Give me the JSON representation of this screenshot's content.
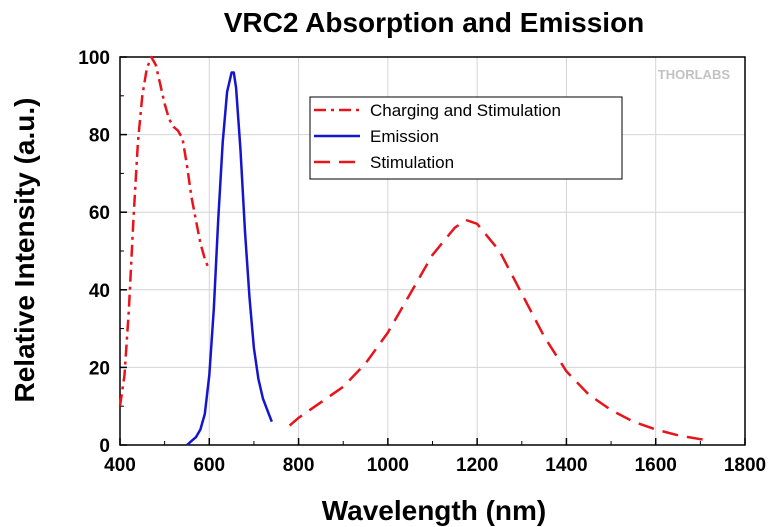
{
  "chart_data": {
    "type": "line",
    "title": "VRC2 Absorption and Emission",
    "xlabel": "Wavelength (nm)",
    "ylabel": "Relative Intensity (a.u.)",
    "xlim": [
      400,
      1800
    ],
    "ylim": [
      0,
      100
    ],
    "xticks": [
      400,
      600,
      800,
      1000,
      1200,
      1400,
      1600,
      1800
    ],
    "yticks": [
      0,
      20,
      40,
      60,
      80,
      100
    ],
    "grid": true,
    "legend_position": "upper-center",
    "watermark": "THORLABS",
    "series": [
      {
        "name": "Charging and Stimulation",
        "color": "#e8141b",
        "dash": "dash-dot",
        "x": [
          400,
          410,
          420,
          430,
          440,
          450,
          460,
          470,
          480,
          490,
          500,
          510,
          520,
          530,
          540,
          550,
          560,
          570,
          580,
          590,
          600
        ],
        "y": [
          10,
          18,
          35,
          58,
          78,
          90,
          97,
          100,
          98,
          93,
          88,
          84,
          82,
          81,
          79,
          72,
          64,
          58,
          52,
          48,
          45
        ]
      },
      {
        "name": "Emission",
        "color": "#1515d0",
        "dash": "solid",
        "x": [
          550,
          560,
          570,
          580,
          590,
          600,
          610,
          620,
          630,
          640,
          650,
          655,
          660,
          670,
          680,
          690,
          700,
          710,
          720,
          730,
          740
        ],
        "y": [
          0,
          1,
          2,
          4,
          8,
          18,
          35,
          58,
          78,
          91,
          96,
          96,
          92,
          76,
          55,
          38,
          25,
          17,
          12,
          9,
          6
        ]
      },
      {
        "name": "Stimulation",
        "color": "#e8141b",
        "dash": "dashed",
        "x": [
          780,
          800,
          850,
          900,
          950,
          1000,
          1050,
          1100,
          1150,
          1175,
          1200,
          1250,
          1300,
          1350,
          1400,
          1450,
          1500,
          1550,
          1600,
          1650,
          1700,
          1720
        ],
        "y": [
          5,
          7,
          11,
          15,
          21,
          29,
          39,
          49,
          56,
          58,
          57,
          50,
          39,
          28,
          19,
          13,
          9,
          6,
          4,
          2.5,
          1.5,
          1.3
        ]
      }
    ]
  }
}
